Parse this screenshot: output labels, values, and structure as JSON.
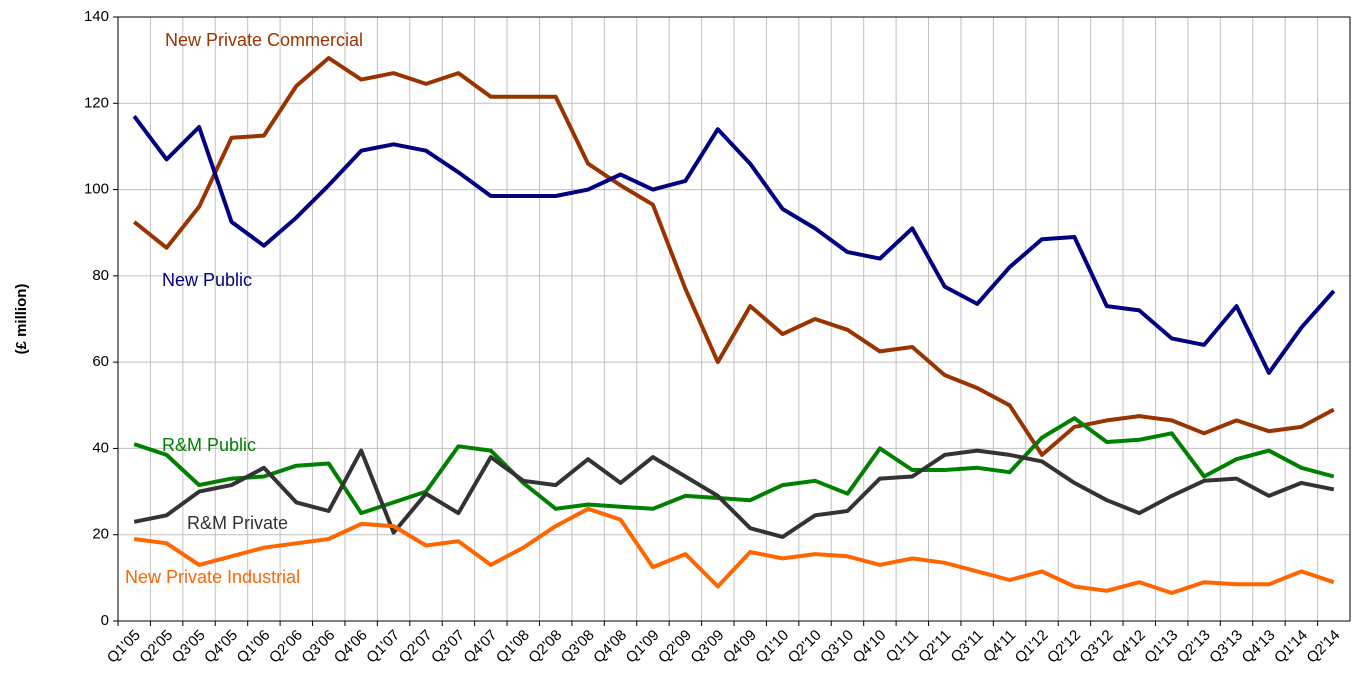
{
  "chart_data": {
    "type": "line",
    "y_label": "(£ million)",
    "categories": [
      "Q1'05",
      "Q2'05",
      "Q3'05",
      "Q4'05",
      "Q1'06",
      "Q2'06",
      "Q3'06",
      "Q4'06",
      "Q1'07",
      "Q2'07",
      "Q3'07",
      "Q4'07",
      "Q1'08",
      "Q2'08",
      "Q3'08",
      "Q4'08",
      "Q1'09",
      "Q2'09",
      "Q3'09",
      "Q4'09",
      "Q1'10",
      "Q2'10",
      "Q3'10",
      "Q4'10",
      "Q1'11",
      "Q2'11",
      "Q3'11",
      "Q4'11",
      "Q1'12",
      "Q2'12",
      "Q3'12",
      "Q4'12",
      "Q1'13",
      "Q2'13",
      "Q3'13",
      "Q4'13",
      "Q1'14",
      "Q2'14"
    ],
    "series": [
      {
        "name": "New Private Commercial",
        "color": "#993300",
        "values": [
          92.5,
          86.5,
          96,
          112,
          112.5,
          124,
          130.5,
          125.5,
          127,
          124.5,
          127,
          121.5,
          121.5,
          121.5,
          106,
          101,
          96.5,
          77,
          60,
          73,
          66.5,
          70,
          67.5,
          62.5,
          63.5,
          57,
          54,
          50,
          38.5,
          45,
          46.5,
          47.5,
          46.5,
          43.5,
          46.5,
          44,
          45,
          49
        ]
      },
      {
        "name": "New Public",
        "color": "#000080",
        "values": [
          117,
          107,
          114.5,
          92.5,
          87,
          93.5,
          101,
          109,
          110.5,
          109,
          104,
          98.5,
          98.5,
          98.5,
          100,
          103.5,
          100,
          102,
          114,
          106,
          95.5,
          91,
          85.5,
          84,
          91,
          77.5,
          73.5,
          82,
          88.5,
          89,
          73,
          72,
          65.5,
          64,
          73,
          57.5,
          68,
          76.5
        ]
      },
      {
        "name": "R&M Public",
        "color": "#008000",
        "values": [
          41,
          38.5,
          31.5,
          33,
          33.5,
          36,
          36.5,
          25,
          27.5,
          30,
          40.5,
          39.5,
          32,
          26,
          27,
          26.5,
          26,
          29,
          28.5,
          28,
          31.5,
          32.5,
          29.5,
          40,
          35,
          35,
          35.5,
          34.5,
          42.5,
          47,
          41.5,
          42,
          43.5,
          33.5,
          37.5,
          39.5,
          35.5,
          33.5
        ]
      },
      {
        "name": "R&M Private",
        "color": "#333333",
        "values": [
          23,
          24.5,
          30,
          31.5,
          35.5,
          27.5,
          25.5,
          39.5,
          20.5,
          29.5,
          25,
          38,
          32.5,
          31.5,
          37.5,
          32,
          38,
          33.5,
          29,
          21.5,
          19.5,
          24.5,
          25.5,
          33,
          33.5,
          38.5,
          39.5,
          38.5,
          37,
          32,
          28,
          25,
          29,
          32.5,
          33,
          29,
          32,
          30.5
        ]
      },
      {
        "name": "New Private Industrial",
        "color": "#ff6600",
        "values": [
          19,
          18,
          13,
          15,
          17,
          18,
          19,
          22.5,
          22,
          17.5,
          18.5,
          13,
          17,
          22,
          26,
          23.5,
          12.5,
          15.5,
          8,
          16,
          14.5,
          15.5,
          15,
          13,
          14.5,
          13.5,
          11.5,
          9.5,
          11.5,
          8,
          7,
          9,
          6.5,
          9,
          8.5,
          8.5,
          11.5,
          9
        ]
      }
    ],
    "ylim": [
      0,
      140
    ],
    "yticks": [
      0,
      20,
      40,
      60,
      80,
      100,
      120,
      140
    ],
    "grid": true
  }
}
